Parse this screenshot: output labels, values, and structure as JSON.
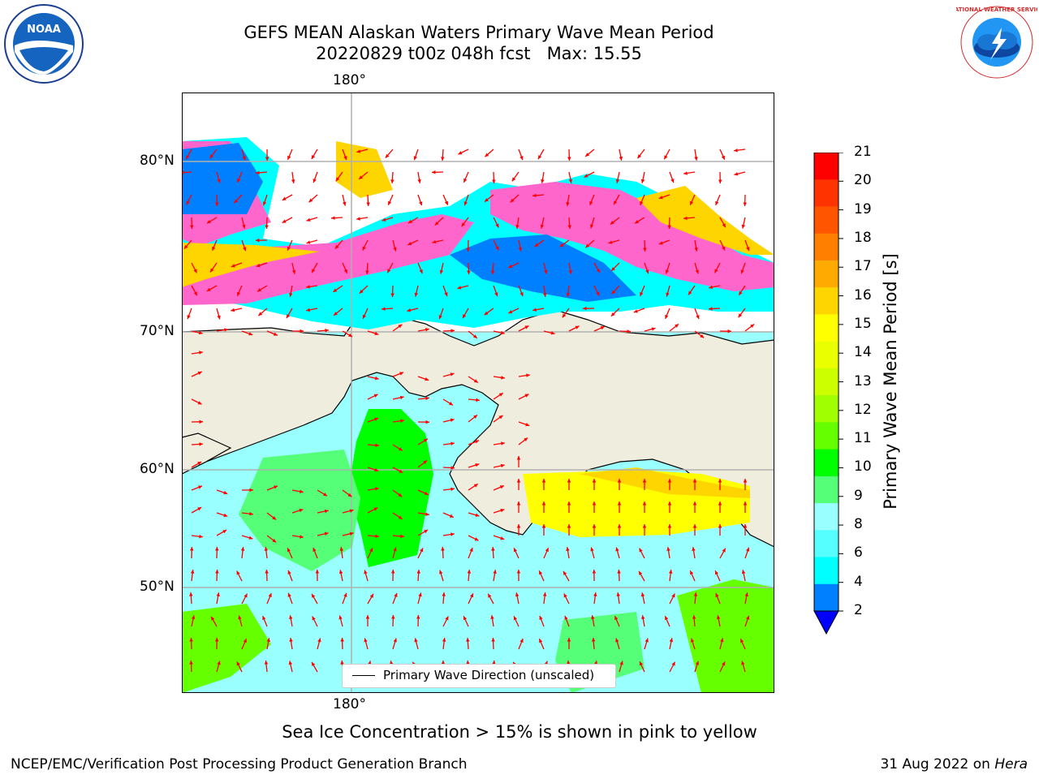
{
  "title": {
    "line1": "GEFS MEAN Alaskan Waters Primary Wave Mean Period",
    "line2": "20220829 t00z 048h fcst   Max: 15.55"
  },
  "map": {
    "lon_label_top": "180°",
    "lon_label_bottom": "180°",
    "lat_labels": [
      "80°N",
      "70°N",
      "60°N",
      "50°N"
    ],
    "legend_label": "Primary Wave Direction (unscaled)",
    "land_color": "#efedde",
    "grid_color": "#b0b0b0",
    "arrow_color": "#ff0000"
  },
  "colorbar": {
    "label": "Primary Wave Mean Period [s]",
    "ticks": [
      "21",
      "20",
      "19",
      "18",
      "17",
      "16",
      "15",
      "14",
      "13",
      "12",
      "11",
      "10",
      "9",
      "8",
      "6",
      "4",
      "2"
    ],
    "colors": [
      "#ff0000",
      "#ff3300",
      "#ff5500",
      "#ff7f00",
      "#ffaa00",
      "#ffd500",
      "#ffff00",
      "#eaff00",
      "#ccff00",
      "#a0ff00",
      "#66ff00",
      "#00ff00",
      "#55ff77",
      "#99ffff",
      "#55ffff",
      "#00ffff",
      "#0080ff"
    ],
    "extend_color": "#0000ff"
  },
  "caption": "Sea Ice Concentration > 15% is shown in pink to yellow",
  "footer": {
    "left": "NCEP/EMC/Verification Post Processing Product Generation Branch",
    "date": "31 Aug 2022 on ",
    "machine": "Hera"
  },
  "logos": {
    "noaa_text": "NOAA",
    "nws_text": "NATIONAL WEATHER SERVICE"
  }
}
